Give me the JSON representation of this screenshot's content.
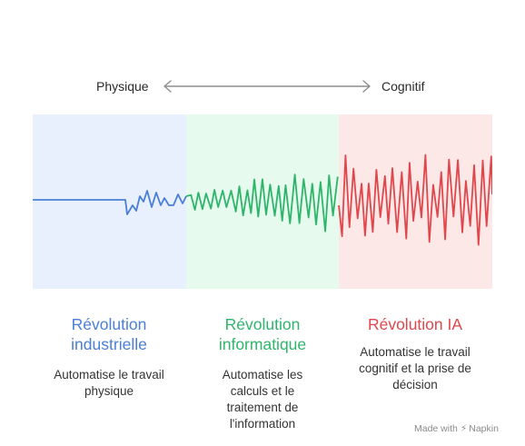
{
  "axis": {
    "left_label": "Physique",
    "right_label": "Cognitif"
  },
  "eras": [
    {
      "title_line1": "Révolution",
      "title_line2": "industrielle",
      "desc_lines": [
        "Automatise le travail",
        "physique"
      ],
      "color": "#4a7fd6",
      "band_color": "#e9f0fd"
    },
    {
      "title_line1": "Révolution",
      "title_line2": "informatique",
      "desc_lines": [
        "Automatise les",
        "calculs et le",
        "traitement de",
        "l'information"
      ],
      "color": "#2fb56b",
      "band_color": "#e6fbee"
    },
    {
      "title_line1": "Révolution IA",
      "title_line2": "",
      "desc_lines": [
        "Automatise le travail",
        "cognitif et la prise de",
        "décision"
      ],
      "color": "#e0474c",
      "band_color": "#fde8e8"
    }
  ],
  "watermark": {
    "prefix": "Made with",
    "brand": "Napkin",
    "icon": "napkin-logo-icon"
  }
}
